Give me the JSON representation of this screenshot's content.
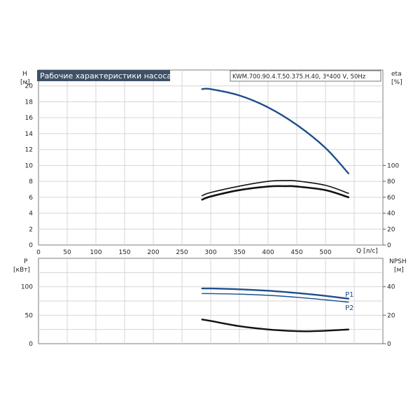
{
  "chart_data": [
    {
      "type": "line",
      "title": "Рабочие характеристики насоса",
      "subtitle": "KWM.700.90.4.T.50.375.H.40, 3*400 V, 50Hz",
      "x_label": "Q [л/с]",
      "y_left_label": [
        "H",
        "[м]"
      ],
      "y_right_label": [
        "eta",
        "[%]"
      ],
      "xlim": [
        0,
        600
      ],
      "ylim_left": [
        0,
        22
      ],
      "ylim_right": [
        0,
        220
      ],
      "x_ticks": [
        0,
        50,
        100,
        150,
        200,
        250,
        300,
        350,
        400,
        450,
        500
      ],
      "y_left_ticks": [
        0,
        2,
        4,
        6,
        8,
        10,
        12,
        14,
        16,
        18,
        20
      ],
      "y_right_ticks": [
        0,
        20,
        40,
        60,
        80,
        100
      ],
      "grid": true,
      "series": [
        {
          "axis": "left",
          "color": "#1f4e8c",
          "points": [
            [
              285,
              19.6
            ],
            [
              300,
              19.6
            ],
            [
              350,
              18.8
            ],
            [
              400,
              17.3
            ],
            [
              450,
              15.1
            ],
            [
              500,
              12.2
            ],
            [
              540,
              9.0
            ]
          ]
        },
        {
          "axis": "right",
          "color": "#111111",
          "points": [
            [
              285,
              62
            ],
            [
              300,
              66
            ],
            [
              350,
              74
            ],
            [
              400,
              80
            ],
            [
              430,
              81
            ],
            [
              450,
              80.5
            ],
            [
              500,
              75
            ],
            [
              540,
              65
            ]
          ]
        },
        {
          "axis": "right",
          "color": "#111111",
          "points": [
            [
              285,
              57
            ],
            [
              300,
              61
            ],
            [
              350,
              69
            ],
            [
              400,
              73.5
            ],
            [
              430,
              74
            ],
            [
              450,
              73.5
            ],
            [
              500,
              69
            ],
            [
              540,
              60
            ]
          ]
        }
      ]
    },
    {
      "type": "line",
      "y_left_label": [
        "P",
        "[кВт]"
      ],
      "y_right_label": [
        "NPSH",
        "[м]"
      ],
      "xlim": [
        0,
        600
      ],
      "ylim_left": [
        0,
        150
      ],
      "ylim_right": [
        0,
        60
      ],
      "y_left_ticks": [
        0,
        50,
        100
      ],
      "y_right_ticks": [
        0,
        20,
        40
      ],
      "grid": true,
      "series": [
        {
          "name": "P1",
          "axis": "left",
          "color": "#1f4e8c",
          "points": [
            [
              285,
              97
            ],
            [
              300,
              97
            ],
            [
              350,
              95.5
            ],
            [
              400,
              93
            ],
            [
              450,
              89
            ],
            [
              500,
              84
            ],
            [
              540,
              79
            ]
          ]
        },
        {
          "name": "P2",
          "axis": "left",
          "color": "#1f4e8c",
          "points": [
            [
              285,
              88
            ],
            [
              300,
              88
            ],
            [
              350,
              87
            ],
            [
              400,
              85
            ],
            [
              450,
              81.5
            ],
            [
              500,
              77
            ],
            [
              540,
              73
            ]
          ]
        },
        {
          "axis": "right",
          "color": "#111111",
          "points": [
            [
              285,
              17
            ],
            [
              300,
              16
            ],
            [
              350,
              12.3
            ],
            [
              400,
              10.0
            ],
            [
              450,
              8.8
            ],
            [
              480,
              8.8
            ],
            [
              510,
              9.3
            ],
            [
              540,
              10.0
            ]
          ]
        }
      ]
    }
  ]
}
